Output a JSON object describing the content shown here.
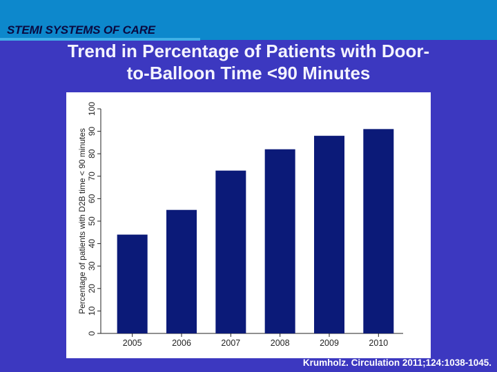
{
  "header": {
    "label": "STEMI SYSTEMS OF CARE"
  },
  "slide": {
    "title_line1": "Trend in Percentage of Patients with Door-",
    "title_line2": "to-Balloon Time <90 Minutes"
  },
  "citation": "Krumholz. Circulation 2011;124:1038-1045.",
  "colors": {
    "background": "#3c38c0",
    "top_band": "#0d88cc",
    "bar": "#0b1a78"
  },
  "chart_data": {
    "type": "bar",
    "title": "",
    "xlabel": "",
    "ylabel": "Percentage of patients with D2B time < 90 minutes",
    "categories": [
      "2005",
      "2006",
      "2007",
      "2008",
      "2009",
      "2010"
    ],
    "values": [
      44,
      55,
      72.5,
      82,
      88,
      91
    ],
    "ylim": [
      0,
      100
    ],
    "yticks": [
      "0",
      "10",
      "20",
      "30",
      "40",
      "50",
      "60",
      "70",
      "80",
      "90",
      "100"
    ],
    "grid": false,
    "legend": "none"
  }
}
